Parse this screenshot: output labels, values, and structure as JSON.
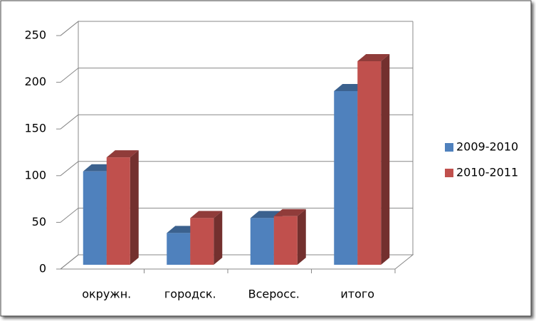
{
  "chart_data": {
    "type": "bar3d",
    "categories": [
      "окружн.",
      "городск.",
      "Всеросс.",
      "итого"
    ],
    "series": [
      {
        "name": "2009-2010",
        "color": "#4f81bd",
        "values": [
          100,
          34,
          50,
          186
        ]
      },
      {
        "name": "2010-2011",
        "color": "#c0504d",
        "values": [
          115,
          50,
          52,
          218
        ]
      }
    ],
    "ylim": [
      0,
      250
    ],
    "yticks": [
      0,
      50,
      100,
      150,
      200,
      250
    ],
    "grid": true,
    "legend": "right"
  }
}
